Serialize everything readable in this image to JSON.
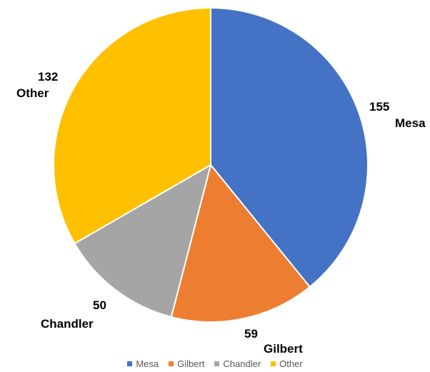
{
  "chart_data": {
    "type": "pie",
    "title": "",
    "categories": [
      "Mesa",
      "Gilbert",
      "Chandler",
      "Other"
    ],
    "values": [
      155,
      59,
      50,
      132
    ],
    "colors": [
      "#4472C4",
      "#ED7D31",
      "#A5A5A5",
      "#FFC000"
    ],
    "start_angle_deg": 0,
    "direction": "clockwise",
    "data_labels": [
      {
        "value": "155",
        "category": "Mesa"
      },
      {
        "value": "59",
        "category": "Gilbert"
      },
      {
        "value": "50",
        "category": "Chandler"
      },
      {
        "value": "132",
        "category": "Other"
      }
    ],
    "legend": {
      "position": "bottom",
      "entries": [
        "Mesa",
        "Gilbert",
        "Chandler",
        "Other"
      ]
    }
  }
}
